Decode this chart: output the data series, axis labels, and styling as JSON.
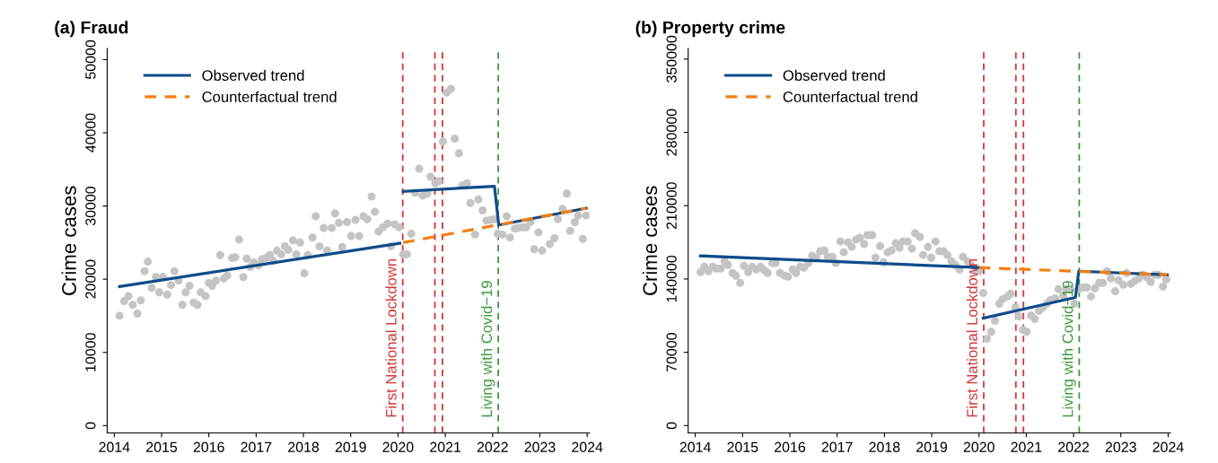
{
  "chart_data": [
    {
      "type": "scatter",
      "title": "(a) Fraud",
      "ylabel": "Crime cases",
      "xlim": [
        2013.85,
        2024.05
      ],
      "xticks": [
        2014,
        2015,
        2016,
        2017,
        2018,
        2019,
        2020,
        2021,
        2022,
        2023,
        2024
      ],
      "ylim": [
        -1000,
        51500
      ],
      "yticks": [
        0,
        10000,
        20000,
        30000,
        40000,
        50000
      ],
      "grid": false,
      "legend": "top left",
      "series": [
        {
          "marker": "circle",
          "color": "#c4c4c4",
          "x": [
            2014.11,
            2014.21,
            2014.3,
            2014.39,
            2014.49,
            2014.56,
            2014.64,
            2014.71,
            2014.79,
            2014.88,
            2014.95,
            2015.03,
            2015.12,
            2015.2,
            2015.27,
            2015.36,
            2015.44,
            2015.51,
            2015.59,
            2015.68,
            2015.76,
            2015.83,
            2015.93,
            2016.0,
            2016.07,
            2016.15,
            2016.24,
            2016.32,
            2016.39,
            2016.49,
            2016.56,
            2016.64,
            2016.73,
            2016.8,
            2016.88,
            2016.95,
            2017.05,
            2017.12,
            2017.21,
            2017.29,
            2017.36,
            2017.44,
            2017.53,
            2017.61,
            2017.68,
            2017.78,
            2017.85,
            2017.93,
            2018.02,
            2018.09,
            2018.19,
            2018.26,
            2018.34,
            2018.43,
            2018.5,
            2018.6,
            2018.67,
            2018.75,
            2018.82,
            2018.92,
            2019.01,
            2019.1,
            2019.18,
            2019.27,
            2019.35,
            2019.44,
            2019.51,
            2019.59,
            2019.68,
            2019.78,
            2019.85,
            2019.93,
            2020.02,
            2020.11,
            2020.19,
            2020.28,
            2020.36,
            2020.45,
            2020.52,
            2020.62,
            2020.69,
            2020.79,
            2020.86,
            2020.95,
            2021.03,
            2021.12,
            2021.2,
            2021.29,
            2021.36,
            2021.46,
            2021.53,
            2021.63,
            2021.7,
            2021.79,
            2021.87,
            2021.96,
            2022.04,
            2022.11,
            2022.21,
            2022.3,
            2022.37,
            2022.47,
            2022.54,
            2022.64,
            2022.71,
            2022.8,
            2022.88,
            2022.97,
            2023.05,
            2023.21,
            2023.31,
            2023.38,
            2023.48,
            2023.57,
            2023.64,
            2023.74,
            2023.81,
            2023.91,
            2023.98
          ],
          "values": [
            15000,
            17000,
            17700,
            16500,
            15300,
            17100,
            21100,
            22400,
            18800,
            20300,
            18200,
            20300,
            17900,
            19200,
            21100,
            19800,
            16500,
            18200,
            19100,
            16800,
            16500,
            18200,
            17700,
            19500,
            19100,
            19800,
            23300,
            20100,
            20500,
            22900,
            23000,
            25400,
            20300,
            22800,
            21700,
            22300,
            21900,
            22700,
            22900,
            23300,
            22500,
            23900,
            23400,
            24500,
            24000,
            25300,
            23400,
            25000,
            20800,
            23300,
            25700,
            28600,
            24500,
            27000,
            23900,
            27000,
            29000,
            27700,
            24400,
            27800,
            25900,
            28100,
            25900,
            28600,
            28200,
            31300,
            29200,
            26500,
            27100,
            27600,
            24500,
            27500,
            27100,
            23400,
            23400,
            26200,
            31800,
            35100,
            31400,
            31700,
            34000,
            33100,
            33400,
            38800,
            45500,
            46000,
            39200,
            37200,
            32800,
            33100,
            30400,
            26100,
            30900,
            29400,
            28000,
            28100,
            28200,
            26200,
            26100,
            28600,
            25700,
            26900,
            27000,
            27100,
            27100,
            27800,
            24100,
            26400,
            23900,
            24800,
            25600,
            28200,
            29600,
            31700,
            26600,
            27800,
            28700,
            25500,
            28700
          ]
        },
        {
          "type": "line",
          "name": "Observed trend",
          "color": "#0f4c8a",
          "line_style": "solid",
          "x": [
            2014.11,
            2020.04,
            2020.08,
            2020.11,
            2022.04,
            2022.13,
            2023.98
          ],
          "values": [
            19000,
            24900,
            null,
            32000,
            32700,
            27400,
            29700
          ]
        },
        {
          "type": "line",
          "name": "Counterfactual trend",
          "color": "#f57f0f",
          "line_style": "dashed",
          "x": [
            2020.11,
            2023.98
          ],
          "values": [
            25000,
            29700
          ]
        }
      ],
      "ref_lines": [
        {
          "axis": "x",
          "value": 2020.1,
          "label": "First National Lockdown",
          "color": "#d1373a",
          "line_style": "dashed"
        },
        {
          "axis": "x",
          "value": 2020.78,
          "color": "#d1373a",
          "line_style": "dashed"
        },
        {
          "axis": "x",
          "value": 2020.94,
          "color": "#d1373a",
          "line_style": "dashed"
        },
        {
          "axis": "x",
          "value": 2022.12,
          "label": "Living with Covid−19",
          "color": "#3a9a3a",
          "line_style": "dashed"
        }
      ]
    },
    {
      "type": "scatter",
      "title": "(b) Property crime",
      "ylabel": "Crime cases",
      "xlim": [
        2013.85,
        2024.05
      ],
      "xticks": [
        2014,
        2015,
        2016,
        2017,
        2018,
        2019,
        2020,
        2021,
        2022,
        2023,
        2024
      ],
      "ylim": [
        -7000,
        360000
      ],
      "yticks": [
        0,
        70000,
        140000,
        210000,
        280000,
        350000
      ],
      "grid": false,
      "legend": "top left",
      "series": [
        {
          "marker": "circle",
          "color": "#c4c4c4",
          "x": [
            2014.11,
            2014.19,
            2014.28,
            2014.37,
            2014.45,
            2014.54,
            2014.62,
            2014.69,
            2014.79,
            2014.86,
            2014.95,
            2015.03,
            2015.12,
            2015.2,
            2015.29,
            2015.38,
            2015.46,
            2015.53,
            2015.63,
            2015.7,
            2015.79,
            2015.89,
            2015.96,
            2016.06,
            2016.13,
            2016.22,
            2016.3,
            2016.39,
            2016.47,
            2016.56,
            2016.64,
            2016.73,
            2016.8,
            2016.9,
            2016.97,
            2017.07,
            2017.14,
            2017.23,
            2017.31,
            2017.4,
            2017.48,
            2017.57,
            2017.64,
            2017.74,
            2017.81,
            2017.91,
            2017.98,
            2018.07,
            2018.15,
            2018.24,
            2018.32,
            2018.39,
            2018.49,
            2018.58,
            2018.65,
            2018.75,
            2018.82,
            2018.92,
            2018.99,
            2019.08,
            2019.16,
            2019.25,
            2019.33,
            2019.42,
            2019.5,
            2019.59,
            2019.66,
            2019.76,
            2019.83,
            2019.93,
            2020.0,
            2020.09,
            2020.17,
            2020.26,
            2020.34,
            2020.43,
            2020.5,
            2020.6,
            2020.67,
            2020.77,
            2020.84,
            2020.93,
            2021.01,
            2021.1,
            2021.18,
            2021.27,
            2021.35,
            2021.44,
            2021.51,
            2021.61,
            2021.68,
            2021.78,
            2021.85,
            2021.94,
            2022.02,
            2022.11,
            2022.21,
            2022.28,
            2022.37,
            2022.45,
            2022.54,
            2022.62,
            2022.71,
            2022.79,
            2022.88,
            2022.95,
            2023.05,
            2023.12,
            2023.21,
            2023.29,
            2023.38,
            2023.46,
            2023.55,
            2023.63,
            2023.72,
            2023.79,
            2023.89,
            2023.96
          ],
          "values": [
            146500,
            151700,
            147400,
            151700,
            150000,
            150000,
            156900,
            153400,
            145700,
            143100,
            136200,
            152600,
            146500,
            151700,
            149100,
            151700,
            148300,
            145700,
            155200,
            155200,
            145700,
            143100,
            142200,
            149100,
            145700,
            151700,
            150900,
            155200,
            162100,
            160300,
            166400,
            167200,
            161200,
            161200,
            155200,
            175800,
            165500,
            175000,
            170700,
            177600,
            179300,
            173300,
            181900,
            181900,
            160300,
            171500,
            156000,
            165500,
            167200,
            174100,
            169800,
            175800,
            175800,
            169000,
            183600,
            180200,
            162900,
            170700,
            160300,
            175800,
            166400,
            166400,
            162900,
            156900,
            153400,
            149100,
            161200,
            156900,
            153400,
            149100,
            147400,
            126700,
            82800,
            89600,
            100000,
            116400,
            120700,
            123300,
            125900,
            112900,
            104300,
            91400,
            89600,
            105200,
            101700,
            109500,
            112900,
            116400,
            119800,
            121500,
            130200,
            124100,
            130200,
            130200,
            116400,
            130200,
            131900,
            131900,
            123300,
            131000,
            136200,
            136200,
            147400,
            140500,
            128400,
            138800,
            134500,
            145700,
            135300,
            137900,
            140500,
            144000,
            141400,
            137100,
            144000,
            144000,
            132700,
            139600
          ]
        },
        {
          "type": "line",
          "name": "Observed trend",
          "color": "#0f4c8a",
          "line_style": "solid",
          "x": [
            2014.11,
            2020.0,
            2020.05,
            2020.09,
            2022.04,
            2022.11,
            2023.98
          ],
          "values": [
            162100,
            150900,
            null,
            102600,
            122400,
            147400,
            144000
          ]
        },
        {
          "type": "line",
          "name": "Counterfactual trend",
          "color": "#f57f0f",
          "line_style": "dashed",
          "x": [
            2020.0,
            2023.98
          ],
          "values": [
            150900,
            144000
          ]
        }
      ],
      "ref_lines": [
        {
          "axis": "x",
          "value": 2020.1,
          "label": "First National Lockdown",
          "color": "#d1373a",
          "line_style": "dashed"
        },
        {
          "axis": "x",
          "value": 2020.78,
          "color": "#d1373a",
          "line_style": "dashed"
        },
        {
          "axis": "x",
          "value": 2020.94,
          "color": "#d1373a",
          "line_style": "dashed"
        },
        {
          "axis": "x",
          "value": 2022.12,
          "label": "Living with Covid−19",
          "color": "#3a9a3a",
          "line_style": "dashed"
        }
      ]
    }
  ]
}
